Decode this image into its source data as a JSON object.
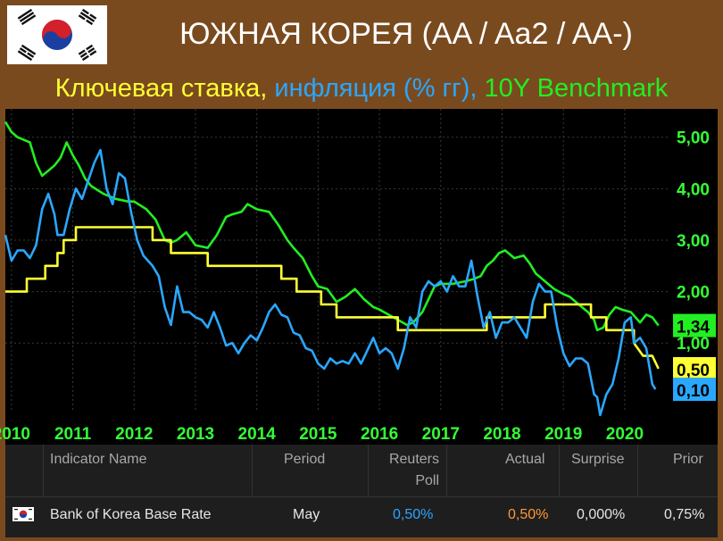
{
  "header": {
    "title": "ЮЖНАЯ КОРЕЯ (AA / Aa2 / AA-)",
    "subtitle_parts": [
      {
        "text": "Ключевая ставка, ",
        "color": "#ffff33"
      },
      {
        "text": "инфляция (% гг), ",
        "color": "#2aa7ff"
      },
      {
        "text": "10Y Benchmark",
        "color": "#22ee22"
      }
    ]
  },
  "colors": {
    "background": "#000000",
    "frame": "#7a4a1f",
    "base_rate": "#ffff33",
    "inflation": "#2aa7ff",
    "benchmark": "#22ee22",
    "axis_text": "#33ff33"
  },
  "chart_data": {
    "type": "line",
    "x_ticks": [
      "2010",
      "2011",
      "2012",
      "2013",
      "2014",
      "2015",
      "2016",
      "2017",
      "2018",
      "2019",
      "2020"
    ],
    "y_ticks": [
      "5,00",
      "4,00",
      "3,00",
      "2,00",
      "1,00"
    ],
    "xlim": [
      2009.9,
      2020.7
    ],
    "ylim": [
      -0.35,
      5.55
    ],
    "end_labels": [
      {
        "text": "1,34",
        "value": 1.34,
        "bg": "#22ee22",
        "color": "#000000"
      },
      {
        "text": "0,50",
        "value": 0.5,
        "bg": "#ffff33",
        "color": "#000000"
      },
      {
        "text": "0,10",
        "value": 0.1,
        "bg": "#2aa7ff",
        "color": "#000000"
      }
    ],
    "series": [
      {
        "key": "benchmark",
        "color": "#22ee22",
        "points": [
          [
            2009.9,
            5.3
          ],
          [
            2010.0,
            5.1
          ],
          [
            2010.1,
            5.0
          ],
          [
            2010.2,
            4.95
          ],
          [
            2010.3,
            4.9
          ],
          [
            2010.4,
            4.5
          ],
          [
            2010.5,
            4.25
          ],
          [
            2010.6,
            4.35
          ],
          [
            2010.7,
            4.45
          ],
          [
            2010.8,
            4.6
          ],
          [
            2010.9,
            4.9
          ],
          [
            2011.0,
            4.65
          ],
          [
            2011.1,
            4.45
          ],
          [
            2011.2,
            4.2
          ],
          [
            2011.3,
            4.05
          ],
          [
            2011.5,
            3.9
          ],
          [
            2011.7,
            3.8
          ],
          [
            2011.9,
            3.75
          ],
          [
            2012.0,
            3.75
          ],
          [
            2012.2,
            3.6
          ],
          [
            2012.35,
            3.4
          ],
          [
            2012.5,
            3.0
          ],
          [
            2012.6,
            2.95
          ],
          [
            2012.7,
            3.0
          ],
          [
            2012.85,
            3.15
          ],
          [
            2013.0,
            2.9
          ],
          [
            2013.2,
            2.85
          ],
          [
            2013.35,
            3.1
          ],
          [
            2013.5,
            3.45
          ],
          [
            2013.6,
            3.5
          ],
          [
            2013.75,
            3.55
          ],
          [
            2013.85,
            3.7
          ],
          [
            2014.0,
            3.6
          ],
          [
            2014.2,
            3.55
          ],
          [
            2014.35,
            3.3
          ],
          [
            2014.5,
            3.0
          ],
          [
            2014.6,
            2.85
          ],
          [
            2014.75,
            2.65
          ],
          [
            2014.9,
            2.3
          ],
          [
            2015.0,
            2.1
          ],
          [
            2015.15,
            2.05
          ],
          [
            2015.3,
            1.8
          ],
          [
            2015.45,
            1.9
          ],
          [
            2015.6,
            2.05
          ],
          [
            2015.75,
            1.85
          ],
          [
            2015.9,
            1.7
          ],
          [
            2016.0,
            1.65
          ],
          [
            2016.15,
            1.55
          ],
          [
            2016.3,
            1.45
          ],
          [
            2016.45,
            1.35
          ],
          [
            2016.55,
            1.4
          ],
          [
            2016.7,
            1.6
          ],
          [
            2016.8,
            1.85
          ],
          [
            2016.9,
            2.1
          ],
          [
            2017.0,
            2.15
          ],
          [
            2017.2,
            2.15
          ],
          [
            2017.4,
            2.2
          ],
          [
            2017.55,
            2.25
          ],
          [
            2017.65,
            2.3
          ],
          [
            2017.75,
            2.5
          ],
          [
            2017.85,
            2.6
          ],
          [
            2017.95,
            2.75
          ],
          [
            2018.05,
            2.8
          ],
          [
            2018.2,
            2.65
          ],
          [
            2018.35,
            2.7
          ],
          [
            2018.45,
            2.55
          ],
          [
            2018.55,
            2.35
          ],
          [
            2018.7,
            2.2
          ],
          [
            2018.85,
            2.05
          ],
          [
            2019.0,
            1.95
          ],
          [
            2019.1,
            1.9
          ],
          [
            2019.2,
            1.8
          ],
          [
            2019.3,
            1.7
          ],
          [
            2019.4,
            1.6
          ],
          [
            2019.5,
            1.45
          ],
          [
            2019.55,
            1.25
          ],
          [
            2019.65,
            1.3
          ],
          [
            2019.75,
            1.55
          ],
          [
            2019.85,
            1.7
          ],
          [
            2019.95,
            1.65
          ],
          [
            2020.1,
            1.6
          ],
          [
            2020.25,
            1.4
          ],
          [
            2020.35,
            1.55
          ],
          [
            2020.45,
            1.5
          ],
          [
            2020.55,
            1.34
          ]
        ]
      },
      {
        "key": "base_rate",
        "color": "#ffff33",
        "points": [
          [
            2009.9,
            2.0
          ],
          [
            2010.25,
            2.0
          ],
          [
            2010.25,
            2.25
          ],
          [
            2010.55,
            2.25
          ],
          [
            2010.55,
            2.5
          ],
          [
            2010.75,
            2.5
          ],
          [
            2010.75,
            2.75
          ],
          [
            2010.85,
            2.75
          ],
          [
            2010.85,
            3.0
          ],
          [
            2011.05,
            3.0
          ],
          [
            2011.05,
            3.25
          ],
          [
            2012.3,
            3.25
          ],
          [
            2012.3,
            3.0
          ],
          [
            2012.6,
            3.0
          ],
          [
            2012.6,
            2.75
          ],
          [
            2013.2,
            2.75
          ],
          [
            2013.2,
            2.5
          ],
          [
            2014.4,
            2.5
          ],
          [
            2014.4,
            2.25
          ],
          [
            2014.65,
            2.25
          ],
          [
            2014.65,
            2.0
          ],
          [
            2015.05,
            2.0
          ],
          [
            2015.05,
            1.75
          ],
          [
            2015.3,
            1.75
          ],
          [
            2015.3,
            1.5
          ],
          [
            2015.9,
            1.5
          ],
          [
            2015.9,
            1.5
          ],
          [
            2016.3,
            1.5
          ],
          [
            2016.3,
            1.25
          ],
          [
            2017.75,
            1.25
          ],
          [
            2017.75,
            1.5
          ],
          [
            2018.7,
            1.5
          ],
          [
            2018.7,
            1.75
          ],
          [
            2019.45,
            1.75
          ],
          [
            2019.45,
            1.5
          ],
          [
            2019.7,
            1.5
          ],
          [
            2019.7,
            1.25
          ],
          [
            2020.15,
            1.25
          ],
          [
            2020.15,
            1.0
          ],
          [
            2020.3,
            0.75
          ],
          [
            2020.45,
            0.75
          ],
          [
            2020.55,
            0.5
          ]
        ]
      },
      {
        "key": "inflation",
        "color": "#2aa7ff",
        "points": [
          [
            2009.9,
            3.1
          ],
          [
            2010.0,
            2.6
          ],
          [
            2010.1,
            2.8
          ],
          [
            2010.2,
            2.8
          ],
          [
            2010.3,
            2.65
          ],
          [
            2010.4,
            2.9
          ],
          [
            2010.5,
            3.6
          ],
          [
            2010.6,
            3.9
          ],
          [
            2010.7,
            3.5
          ],
          [
            2010.75,
            3.1
          ],
          [
            2010.85,
            3.1
          ],
          [
            2010.95,
            3.6
          ],
          [
            2011.05,
            4.0
          ],
          [
            2011.15,
            3.8
          ],
          [
            2011.25,
            4.15
          ],
          [
            2011.35,
            4.5
          ],
          [
            2011.45,
            4.75
          ],
          [
            2011.55,
            4.0
          ],
          [
            2011.65,
            3.7
          ],
          [
            2011.75,
            4.3
          ],
          [
            2011.85,
            4.2
          ],
          [
            2011.95,
            3.55
          ],
          [
            2012.05,
            3.0
          ],
          [
            2012.15,
            2.7
          ],
          [
            2012.3,
            2.5
          ],
          [
            2012.4,
            2.3
          ],
          [
            2012.5,
            1.7
          ],
          [
            2012.6,
            1.35
          ],
          [
            2012.7,
            2.1
          ],
          [
            2012.8,
            1.6
          ],
          [
            2012.9,
            1.6
          ],
          [
            2013.0,
            1.5
          ],
          [
            2013.1,
            1.45
          ],
          [
            2013.2,
            1.3
          ],
          [
            2013.3,
            1.6
          ],
          [
            2013.4,
            1.3
          ],
          [
            2013.5,
            0.95
          ],
          [
            2013.6,
            1.0
          ],
          [
            2013.7,
            0.8
          ],
          [
            2013.8,
            1.0
          ],
          [
            2013.9,
            1.15
          ],
          [
            2014.0,
            1.05
          ],
          [
            2014.1,
            1.3
          ],
          [
            2014.2,
            1.6
          ],
          [
            2014.3,
            1.75
          ],
          [
            2014.4,
            1.55
          ],
          [
            2014.5,
            1.5
          ],
          [
            2014.6,
            1.2
          ],
          [
            2014.7,
            1.15
          ],
          [
            2014.8,
            0.9
          ],
          [
            2014.9,
            0.85
          ],
          [
            2015.0,
            0.6
          ],
          [
            2015.1,
            0.5
          ],
          [
            2015.2,
            0.7
          ],
          [
            2015.3,
            0.6
          ],
          [
            2015.4,
            0.65
          ],
          [
            2015.5,
            0.6
          ],
          [
            2015.6,
            0.8
          ],
          [
            2015.7,
            0.6
          ],
          [
            2015.8,
            0.85
          ],
          [
            2015.9,
            1.1
          ],
          [
            2016.0,
            0.8
          ],
          [
            2016.1,
            0.9
          ],
          [
            2016.2,
            0.8
          ],
          [
            2016.3,
            0.5
          ],
          [
            2016.4,
            0.9
          ],
          [
            2016.5,
            1.5
          ],
          [
            2016.6,
            1.3
          ],
          [
            2016.7,
            2.0
          ],
          [
            2016.8,
            2.2
          ],
          [
            2016.9,
            2.1
          ],
          [
            2017.0,
            2.2
          ],
          [
            2017.1,
            2.0
          ],
          [
            2017.2,
            2.3
          ],
          [
            2017.3,
            2.1
          ],
          [
            2017.4,
            2.1
          ],
          [
            2017.5,
            2.6
          ],
          [
            2017.6,
            1.9
          ],
          [
            2017.7,
            1.3
          ],
          [
            2017.8,
            1.6
          ],
          [
            2017.9,
            1.1
          ],
          [
            2018.0,
            1.4
          ],
          [
            2018.1,
            1.4
          ],
          [
            2018.2,
            1.5
          ],
          [
            2018.3,
            1.3
          ],
          [
            2018.4,
            1.1
          ],
          [
            2018.5,
            1.8
          ],
          [
            2018.6,
            2.15
          ],
          [
            2018.7,
            2.0
          ],
          [
            2018.8,
            2.0
          ],
          [
            2018.9,
            1.3
          ],
          [
            2019.0,
            0.8
          ],
          [
            2019.1,
            0.55
          ],
          [
            2019.2,
            0.7
          ],
          [
            2019.3,
            0.7
          ],
          [
            2019.4,
            0.6
          ],
          [
            2019.5,
            0.0
          ],
          [
            2019.55,
            -0.05
          ],
          [
            2019.6,
            -0.4
          ],
          [
            2019.7,
            0.0
          ],
          [
            2019.8,
            0.2
          ],
          [
            2019.9,
            0.7
          ],
          [
            2020.0,
            1.4
          ],
          [
            2020.1,
            1.5
          ],
          [
            2020.15,
            1.0
          ],
          [
            2020.25,
            1.1
          ],
          [
            2020.35,
            0.9
          ],
          [
            2020.45,
            0.2
          ],
          [
            2020.5,
            0.1
          ]
        ]
      }
    ]
  },
  "table": {
    "headers": {
      "indicator": "Indicator Name",
      "period": "Period",
      "poll_line1": "Reuters",
      "poll_line2": "Poll",
      "actual": "Actual",
      "surprise": "Surprise",
      "prior": "Prior"
    },
    "row": {
      "indicator": "Bank of Korea Base Rate",
      "period": "May",
      "poll": "0,50%",
      "actual": "0,50%",
      "surprise": "0,000%",
      "prior": "0,75%"
    }
  }
}
